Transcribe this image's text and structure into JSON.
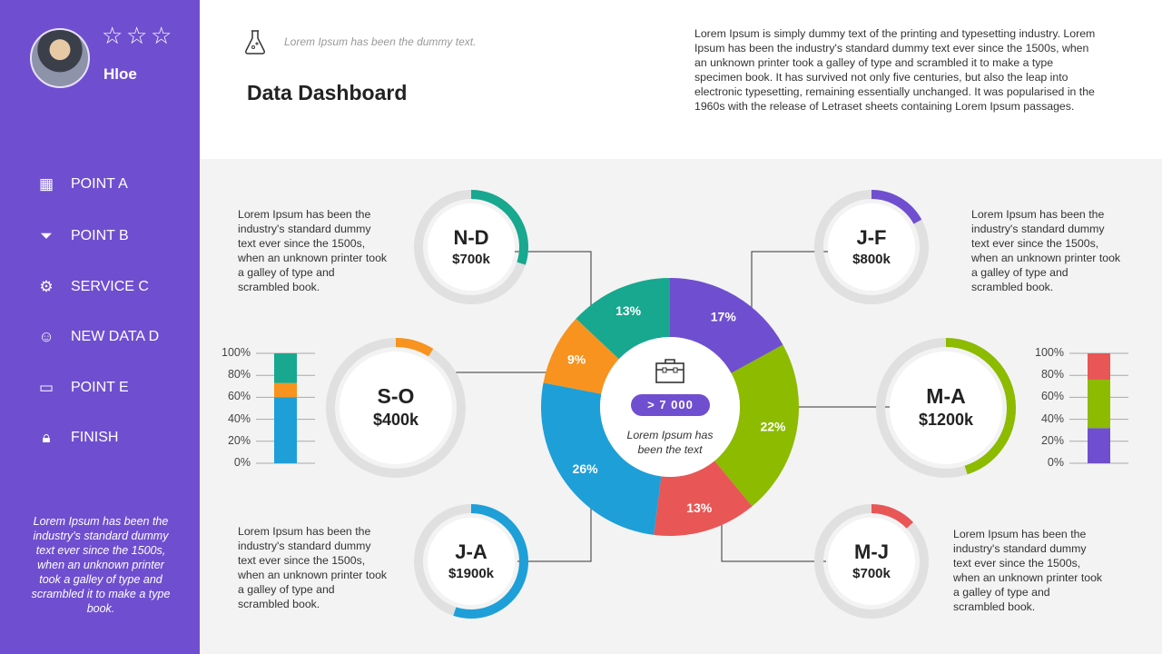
{
  "user": {
    "name": "Hloe",
    "rating": 0,
    "max_rating": 3
  },
  "sidebar": {
    "items": [
      {
        "label": "POINT A",
        "icon": "calendar-icon"
      },
      {
        "label": "POINT B",
        "icon": "funnel-icon"
      },
      {
        "label": "SERVICE C",
        "icon": "gear-icon"
      },
      {
        "label": "NEW DATA D",
        "icon": "users-icon"
      },
      {
        "label": "POINT E",
        "icon": "briefcase-icon"
      },
      {
        "label": "FINISH",
        "icon": "lock-icon"
      }
    ],
    "note": "Lorem Ipsum has been the industry's standard dummy text ever since the 1500s, when an unknown printer took a galley of type and scrambled it to make a type book."
  },
  "header": {
    "subtitle": "Lorem Ipsum has been the dummy text.",
    "title": "Data Dashboard",
    "intro": "Lorem Ipsum is simply dummy text of the printing and typesetting industry. Lorem Ipsum has been the industry's standard dummy text ever since the 1500s, when an unknown printer took a galley of type and scrambled it to make a type specimen book. It has survived not only five centuries, but also the leap into electronic typesetting, remaining essentially unchanged. It was popularised in the 1960s with the release of Letraset sheets containing Lorem Ipsum passages."
  },
  "notes": {
    "nd": "Lorem Ipsum has been the industry's standard dummy text ever since the 1500s, when an unknown printer took a galley of type and scrambled book.",
    "jf": "Lorem Ipsum has been the industry's standard dummy text ever since the 1500s, when an unknown printer took a galley of type and scrambled book.",
    "ja": "Lorem Ipsum has been the industry's standard dummy text ever since the 1500s, when an unknown printer took a galley of type and scrambled book.",
    "mj": "Lorem Ipsum has been the industry's standard dummy text ever since the 1500s, when an unknown printer took a galley of type and scrambled book."
  },
  "center": {
    "badge": "> 7 000",
    "text": "Lorem Ipsum has been the text",
    "icon": "briefcase-icon"
  },
  "chart_data": [
    {
      "type": "pie",
      "donut": true,
      "values": [
        17,
        22,
        13,
        26,
        9,
        13
      ],
      "labels": [
        "17%",
        "22%",
        "13%",
        "26%",
        "9%",
        "13%"
      ],
      "colors": [
        "#6f4fcf",
        "#8cbb00",
        "#e85656",
        "#1e9fd8",
        "#f7931e",
        "#17a88f"
      ]
    },
    {
      "type": "gauges",
      "items": [
        {
          "period": "N-D",
          "value": "$700k",
          "fraction": 0.3,
          "color": "#17a88f"
        },
        {
          "period": "J-F",
          "value": "$800k",
          "fraction": 0.17,
          "color": "#6f4fcf"
        },
        {
          "period": "S-O",
          "value": "$400k",
          "fraction": 0.09,
          "color": "#f7931e"
        },
        {
          "period": "M-A",
          "value": "$1200k",
          "fraction": 0.45,
          "color": "#8cbb00"
        },
        {
          "period": "J-A",
          "value": "$1900k",
          "fraction": 0.55,
          "color": "#1e9fd8"
        },
        {
          "period": "M-J",
          "value": "$700k",
          "fraction": 0.13,
          "color": "#e85656"
        }
      ]
    },
    {
      "type": "bar",
      "stacked": true,
      "ylim": [
        0,
        100
      ],
      "yticks": [
        "0%",
        "20%",
        "40%",
        "60%",
        "80%",
        "100%"
      ],
      "segments": [
        {
          "value": 60,
          "color": "#1e9fd8"
        },
        {
          "value": 13,
          "color": "#f7931e"
        },
        {
          "value": 27,
          "color": "#17a88f"
        }
      ]
    },
    {
      "type": "bar",
      "stacked": true,
      "ylim": [
        0,
        100
      ],
      "yticks": [
        "0%",
        "20%",
        "40%",
        "60%",
        "80%",
        "100%"
      ],
      "segments": [
        {
          "value": 32,
          "color": "#6f4fcf"
        },
        {
          "value": 44,
          "color": "#8cbb00"
        },
        {
          "value": 24,
          "color": "#e85656"
        }
      ]
    }
  ]
}
